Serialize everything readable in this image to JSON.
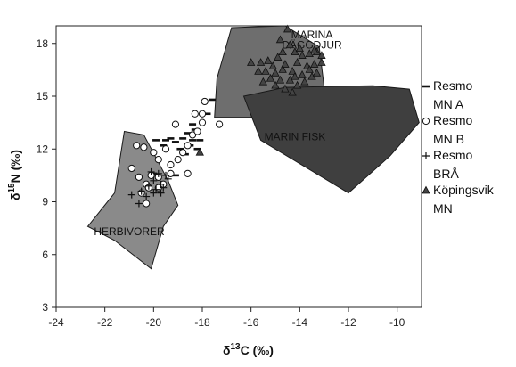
{
  "chart_data": {
    "type": "scatter",
    "xlabel_main": "δ",
    "xlabel_sup": "13",
    "xlabel_rest": "C (‰)",
    "ylabel_main": "δ",
    "ylabel_sup": "15",
    "ylabel_rest": "N (‰)",
    "xlim": [
      -24,
      -9
    ],
    "ylim": [
      3,
      19
    ],
    "xticks": [
      -24,
      -22,
      -20,
      -18,
      -16,
      -14,
      -12,
      -10
    ],
    "yticks": [
      3,
      6,
      9,
      12,
      15,
      18
    ],
    "grid": false,
    "legend_position": "right",
    "regions": [
      {
        "label": "MARINA",
        "label2": "DÄGGDJUR",
        "color": "#6e6e6e",
        "polygon": [
          [
            -16.8,
            18.9
          ],
          [
            -14.6,
            19.0
          ],
          [
            -13.2,
            17.8
          ],
          [
            -13.0,
            15.5
          ],
          [
            -15.2,
            13.8
          ],
          [
            -17.5,
            13.8
          ],
          [
            -17.4,
            16.0
          ]
        ]
      },
      {
        "label": "MARIN FISK",
        "color": "#3f3f3f",
        "polygon": [
          [
            -16.3,
            15.0
          ],
          [
            -14.6,
            15.5
          ],
          [
            -11.0,
            15.6
          ],
          [
            -9.5,
            15.4
          ],
          [
            -9.1,
            13.5
          ],
          [
            -10.3,
            11.6
          ],
          [
            -12.0,
            9.5
          ],
          [
            -15.6,
            12.5
          ]
        ]
      },
      {
        "label": "HERBIVORER",
        "color": "#8a8a8a",
        "polygon": [
          [
            -21.2,
            13.0
          ],
          [
            -20.4,
            12.8
          ],
          [
            -19.4,
            10.2
          ],
          [
            -19.0,
            8.8
          ],
          [
            -19.6,
            7.6
          ],
          [
            -20.1,
            5.2
          ],
          [
            -21.6,
            6.8
          ],
          [
            -22.7,
            7.6
          ],
          [
            -21.6,
            9.5
          ]
        ]
      }
    ],
    "series": [
      {
        "name": "Resmo MN A",
        "marker": "dash",
        "points": [
          [
            -19.9,
            12.5
          ],
          [
            -19.5,
            12.5
          ],
          [
            -19.1,
            12.4
          ],
          [
            -18.8,
            12.6
          ],
          [
            -18.6,
            12.9
          ],
          [
            -18.4,
            12.5
          ],
          [
            -18.2,
            12.0
          ],
          [
            -19.6,
            12.2
          ],
          [
            -18.9,
            12.0
          ],
          [
            -18.1,
            12.5
          ],
          [
            -17.8,
            14.0
          ],
          [
            -17.6,
            14.8
          ],
          [
            -18.3,
            13.1
          ],
          [
            -19.3,
            12.6
          ],
          [
            -18.5,
            12.2
          ],
          [
            -18.7,
            11.7
          ],
          [
            -20.0,
            10.6
          ],
          [
            -19.1,
            10.5
          ],
          [
            -18.4,
            13.4
          ]
        ]
      },
      {
        "name": "Resmo MN B",
        "marker": "circle",
        "points": [
          [
            -20.7,
            12.2
          ],
          [
            -20.9,
            10.9
          ],
          [
            -20.6,
            10.4
          ],
          [
            -20.3,
            10.0
          ],
          [
            -20.5,
            9.5
          ],
          [
            -20.2,
            9.8
          ],
          [
            -19.8,
            10.4
          ],
          [
            -19.6,
            10.0
          ],
          [
            -19.3,
            10.6
          ],
          [
            -19.0,
            11.4
          ],
          [
            -18.8,
            11.8
          ],
          [
            -18.6,
            12.2
          ],
          [
            -18.4,
            12.8
          ],
          [
            -18.2,
            13.0
          ],
          [
            -18.0,
            14.0
          ],
          [
            -17.9,
            14.7
          ],
          [
            -18.3,
            14.0
          ],
          [
            -19.1,
            13.4
          ],
          [
            -19.5,
            12.0
          ],
          [
            -19.8,
            11.4
          ],
          [
            -20.4,
            12.1
          ],
          [
            -20.1,
            10.5
          ],
          [
            -18.6,
            10.6
          ],
          [
            -19.3,
            11.1
          ],
          [
            -20.3,
            8.9
          ],
          [
            -20.0,
            11.8
          ],
          [
            -18.0,
            13.5
          ],
          [
            -17.3,
            13.4
          ],
          [
            -19.8,
            9.8
          ]
        ]
      },
      {
        "name": "Resmo BRÅ",
        "marker": "plus",
        "points": [
          [
            -20.1,
            10.7
          ],
          [
            -19.8,
            10.6
          ],
          [
            -20.0,
            10.2
          ],
          [
            -19.7,
            10.0
          ],
          [
            -19.9,
            9.7
          ],
          [
            -20.2,
            9.9
          ],
          [
            -20.5,
            9.6
          ],
          [
            -20.9,
            9.4
          ],
          [
            -20.3,
            9.3
          ],
          [
            -19.6,
            9.8
          ],
          [
            -19.5,
            10.5
          ],
          [
            -19.7,
            9.5
          ],
          [
            -20.0,
            9.5
          ],
          [
            -20.6,
            8.9
          ],
          [
            -19.4,
            10.3
          ]
        ]
      },
      {
        "name": "Köpingsvik MN",
        "marker": "triangle",
        "points": [
          [
            -14.5,
            18.8
          ],
          [
            -14.4,
            17.9
          ],
          [
            -14.7,
            17.5
          ],
          [
            -14.2,
            17.5
          ],
          [
            -13.9,
            17.3
          ],
          [
            -13.6,
            17.4
          ],
          [
            -13.3,
            17.5
          ],
          [
            -13.1,
            17.3
          ],
          [
            -14.9,
            17.2
          ],
          [
            -15.3,
            17.0
          ],
          [
            -15.6,
            16.9
          ],
          [
            -16.0,
            16.9
          ],
          [
            -15.1,
            16.7
          ],
          [
            -14.6,
            16.8
          ],
          [
            -14.1,
            16.9
          ],
          [
            -13.7,
            16.7
          ],
          [
            -13.4,
            16.8
          ],
          [
            -13.1,
            16.9
          ],
          [
            -15.4,
            16.4
          ],
          [
            -15.0,
            16.3
          ],
          [
            -14.7,
            16.5
          ],
          [
            -14.3,
            16.4
          ],
          [
            -13.9,
            16.2
          ],
          [
            -13.5,
            16.1
          ],
          [
            -13.3,
            16.3
          ],
          [
            -15.2,
            16.0
          ],
          [
            -14.8,
            15.9
          ],
          [
            -14.4,
            15.9
          ],
          [
            -14.1,
            15.6
          ],
          [
            -13.8,
            15.8
          ],
          [
            -15.0,
            15.6
          ],
          [
            -14.6,
            15.4
          ],
          [
            -14.3,
            15.2
          ],
          [
            -15.5,
            15.8
          ],
          [
            -14.0,
            17.7
          ],
          [
            -13.4,
            17.6
          ],
          [
            -14.8,
            18.2
          ],
          [
            -14.2,
            16.1
          ],
          [
            -15.7,
            16.4
          ],
          [
            -13.6,
            16.5
          ],
          [
            -18.1,
            11.8
          ]
        ]
      }
    ],
    "legend": [
      {
        "line1": "Resmo",
        "line2": "MN A"
      },
      {
        "line1": "Resmo",
        "line2": "MN B"
      },
      {
        "line1": "Resmo",
        "line2": "BRÅ"
      },
      {
        "line1": "Köpingsvik",
        "line2": "MN"
      }
    ]
  }
}
